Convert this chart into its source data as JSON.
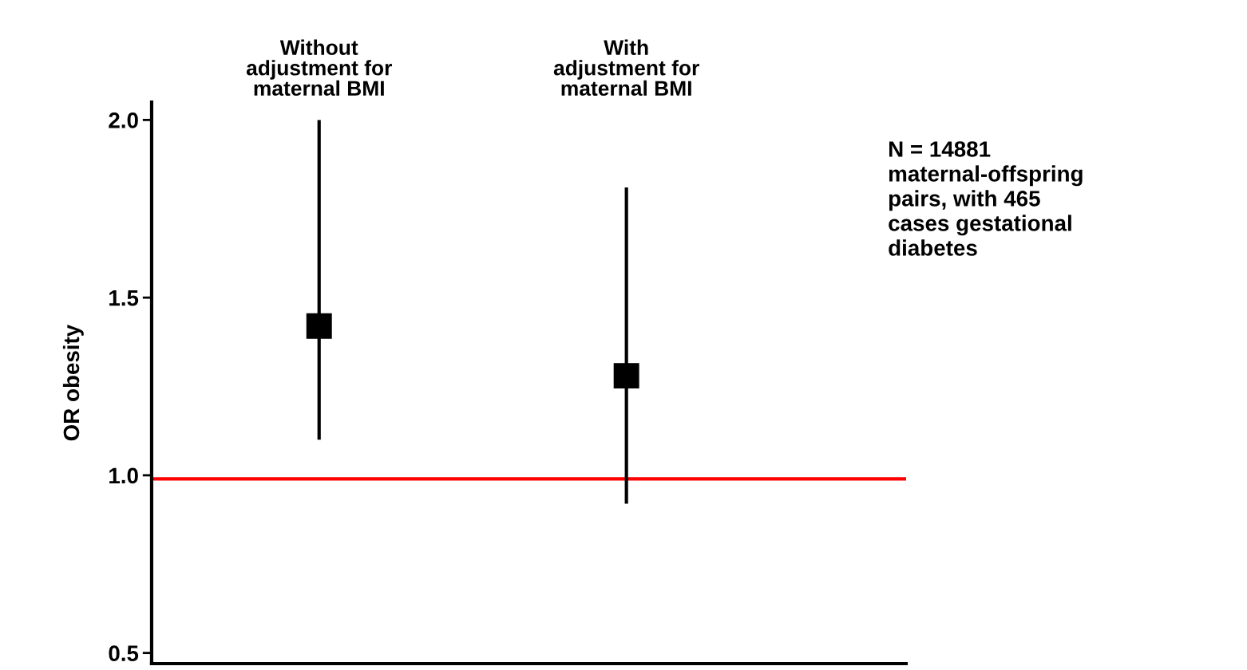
{
  "chart_data": {
    "type": "scatter",
    "ylabel": "OR obesity",
    "categories": [
      "Without\nadjustment for\nmaternal BMI",
      "With\nadjustment for\nmaternal BMI"
    ],
    "series": [
      {
        "color": "#000000",
        "values": [
          1.42,
          1.28
        ],
        "errors": [
          [
            1.1,
            2.0
          ],
          [
            0.92,
            1.81
          ]
        ]
      }
    ],
    "marker": "square",
    "ylim": [
      0.47,
      2.05
    ],
    "yticks": [
      {
        "value": 0.5,
        "label": "0.5"
      },
      {
        "value": 1.0,
        "label": "1.0"
      },
      {
        "value": 1.5,
        "label": "1.5"
      },
      {
        "value": 2.0,
        "label": "2.0"
      }
    ],
    "ref_lines": [
      {
        "axis": "y",
        "value": 0.99,
        "color": "#ff0000"
      }
    ],
    "annotations": [
      "N = 14881\nmaternal-offspring\npairs, with 465\ncases gestational\ndiabetes"
    ],
    "grid": false,
    "legend": false
  }
}
